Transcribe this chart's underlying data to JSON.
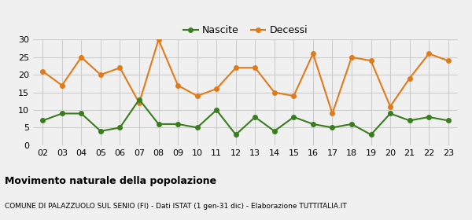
{
  "years": [
    "02",
    "03",
    "04",
    "05",
    "06",
    "07",
    "08",
    "09",
    "10",
    "11",
    "12",
    "13",
    "14",
    "15",
    "16",
    "17",
    "18",
    "19",
    "20",
    "21",
    "22",
    "23"
  ],
  "nascite": [
    7,
    9,
    9,
    4,
    5,
    13,
    6,
    6,
    5,
    10,
    3,
    8,
    4,
    8,
    6,
    5,
    6,
    3,
    9,
    7,
    8,
    7
  ],
  "decessi": [
    21,
    17,
    25,
    20,
    22,
    12,
    30,
    17,
    14,
    16,
    22,
    22,
    15,
    14,
    26,
    9,
    25,
    24,
    11,
    19,
    26,
    24
  ],
  "nascite_color": "#3a7d1e",
  "decessi_color": "#e07b1a",
  "title": "Movimento naturale della popolazione",
  "subtitle": "COMUNE DI PALAZZUOLO SUL SENIO (FI) - Dati ISTAT (1 gen-31 dic) - Elaborazione TUTTITALIA.IT",
  "ylim": [
    0,
    30
  ],
  "yticks": [
    0,
    5,
    10,
    15,
    20,
    25,
    30
  ],
  "legend_nascite": "Nascite",
  "legend_decessi": "Decessi",
  "bg_color": "#f0f0f0",
  "grid_color": "#cccccc"
}
